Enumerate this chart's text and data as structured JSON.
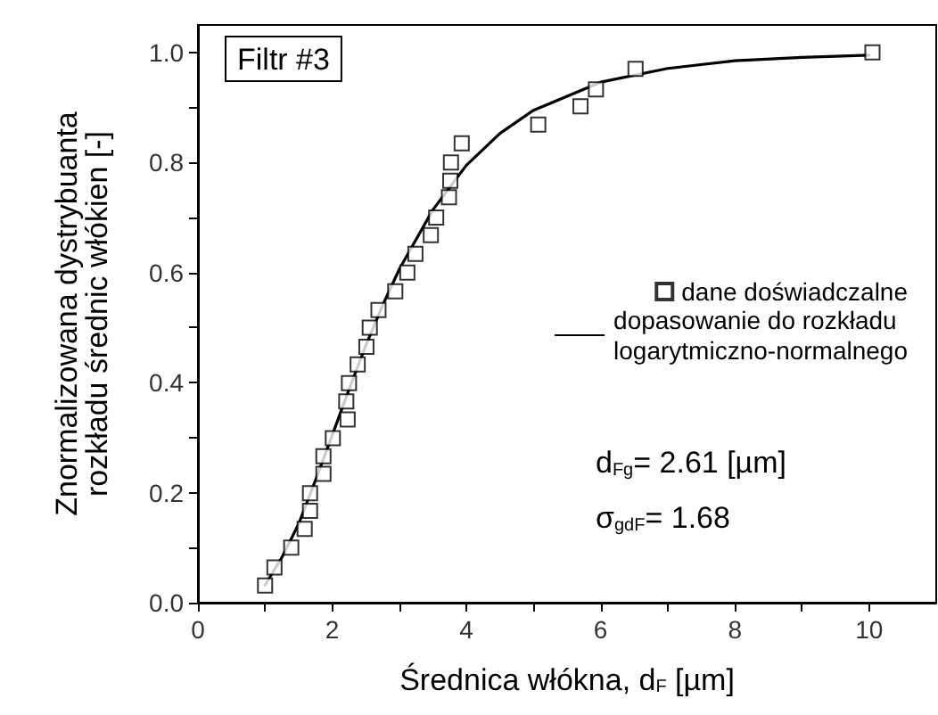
{
  "chart_data": {
    "type": "scatter",
    "xlabel": "Średnica włókna, d$_{F}$ [µm]",
    "ylabel": "Znormalizowana dystrybuanta\nrozkładu średnic włókien [-]",
    "annotations": [
      "Filtr #3",
      "d$_{Fg}$= 2.61 [µm]",
      "σ$_{gdF}$= 1.68"
    ],
    "xlim": [
      0,
      11
    ],
    "ylim": [
      0,
      1.05
    ],
    "xticks": [
      0,
      {
        "value": 1,
        "label": null
      },
      2,
      {
        "value": 3,
        "label": null
      },
      4,
      {
        "value": 5,
        "label": null
      },
      6,
      {
        "value": 7,
        "label": null
      },
      8,
      {
        "value": 9,
        "label": null
      },
      10
    ],
    "yticks": [
      {
        "value": 0,
        "label": "0.0"
      },
      {
        "value": 0.1,
        "label": null
      },
      0.2,
      {
        "value": 0.3,
        "label": null
      },
      0.4,
      {
        "value": 0.5,
        "label": null
      },
      0.6,
      {
        "value": 0.7,
        "label": null
      },
      0.8,
      {
        "value": 0.9,
        "label": null
      },
      {
        "value": 1,
        "label": "1.0"
      }
    ],
    "grid": false,
    "legend": "right",
    "series": [
      {
        "name": "dane doświadczalne",
        "type": "scatter",
        "marker": "square",
        "color": "#000000",
        "x": [
          1.0,
          1.14,
          1.39,
          1.59,
          1.67,
          1.67,
          1.87,
          1.87,
          2.01,
          2.23,
          2.21,
          2.25,
          2.38,
          2.51,
          2.56,
          2.69,
          2.94,
          3.12,
          3.24,
          3.47,
          3.55,
          3.74,
          3.76,
          3.77,
          3.93,
          5.07,
          5.7,
          5.93,
          6.52,
          10.05
        ],
        "values": [
          0.031,
          0.064,
          0.1,
          0.134,
          0.167,
          0.199,
          0.234,
          0.266,
          0.299,
          0.333,
          0.366,
          0.399,
          0.433,
          0.465,
          0.5,
          0.532,
          0.566,
          0.6,
          0.634,
          0.668,
          0.7,
          0.737,
          0.767,
          0.8,
          0.835,
          0.869,
          0.902,
          0.933,
          0.97,
          1.0
        ]
      },
      {
        "name": "dopasowanie do rozkładu\nlogarytmiczno-normalnego",
        "type": "line",
        "marker": "none",
        "line_style": "solid",
        "color": "#000000",
        "x": [
          1.0,
          1.25,
          1.5,
          1.75,
          2.0,
          2.25,
          2.5,
          2.75,
          3.0,
          3.5,
          4.0,
          4.5,
          5.0,
          6.0,
          7.0,
          8.0,
          9.0,
          10.0
        ],
        "values": [
          0.032,
          0.082,
          0.143,
          0.222,
          0.304,
          0.387,
          0.467,
          0.54,
          0.606,
          0.714,
          0.795,
          0.853,
          0.895,
          0.946,
          0.971,
          0.985,
          0.991,
          0.995
        ]
      }
    ]
  }
}
